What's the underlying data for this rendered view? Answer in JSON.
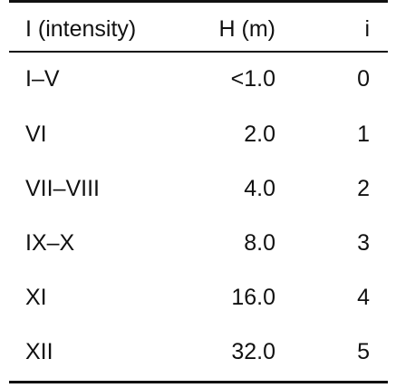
{
  "table": {
    "headers": {
      "intensity": "I (intensity)",
      "height": "H (m)",
      "index": "i"
    },
    "rows": [
      {
        "intensity": "I–V",
        "height": "<1.0",
        "index": "0"
      },
      {
        "intensity": "VI",
        "height": "2.0",
        "index": "1"
      },
      {
        "intensity": "VII–VIII",
        "height": "4.0",
        "index": "2"
      },
      {
        "intensity": "IX–X",
        "height": "8.0",
        "index": "3"
      },
      {
        "intensity": "XI",
        "height": "16.0",
        "index": "4"
      },
      {
        "intensity": "XII",
        "height": "32.0",
        "index": "5"
      }
    ]
  }
}
